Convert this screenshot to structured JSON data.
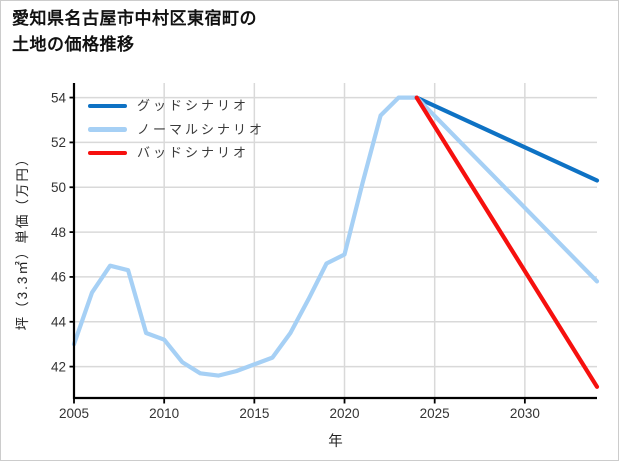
{
  "chart_data": {
    "type": "line",
    "title_line1": "愛知県名古屋市中村区東宿町の",
    "title_line2": "土地の価格推移",
    "xlabel": "年",
    "ylabel": "坪（3.3㎡）単価（万円）",
    "x_ticks": [
      2005,
      2010,
      2015,
      2020,
      2025,
      2030
    ],
    "y_ticks": [
      42,
      44,
      46,
      48,
      50,
      52,
      54
    ],
    "xlim": [
      2005,
      2034
    ],
    "ylim": [
      40.6,
      54.65
    ],
    "grid": true,
    "legend_position": "upper-left",
    "colors": {
      "good": "#0e72c4",
      "normal": "#a6d0f5",
      "bad": "#f6100e",
      "gridline": "#d9d9d9",
      "axis": "#000000",
      "tick_text": "#333333"
    },
    "history": {
      "color": "#a6d0f5",
      "x": [
        2005,
        2006,
        2007,
        2008,
        2009,
        2010,
        2011,
        2012,
        2013,
        2014,
        2015,
        2016,
        2017,
        2018,
        2019,
        2020,
        2021,
        2022,
        2023,
        2024
      ],
      "values": [
        43.0,
        45.3,
        46.5,
        46.3,
        43.5,
        43.2,
        42.2,
        41.7,
        41.6,
        41.8,
        42.1,
        42.4,
        43.5,
        45.0,
        46.6,
        47.0,
        50.2,
        53.2,
        54.0,
        54.0
      ]
    },
    "scenarios": [
      {
        "key": "good",
        "name": "グッドシナリオ",
        "color": "#0e72c4",
        "x": [
          2024,
          2034
        ],
        "values": [
          54.0,
          50.3
        ]
      },
      {
        "key": "normal",
        "name": "ノーマルシナリオ",
        "color": "#a6d0f5",
        "x": [
          2024,
          2034
        ],
        "values": [
          54.0,
          45.8
        ]
      },
      {
        "key": "bad",
        "name": "バッドシナリオ",
        "color": "#f6100e",
        "x": [
          2024,
          2034
        ],
        "values": [
          54.0,
          41.1
        ]
      }
    ]
  }
}
